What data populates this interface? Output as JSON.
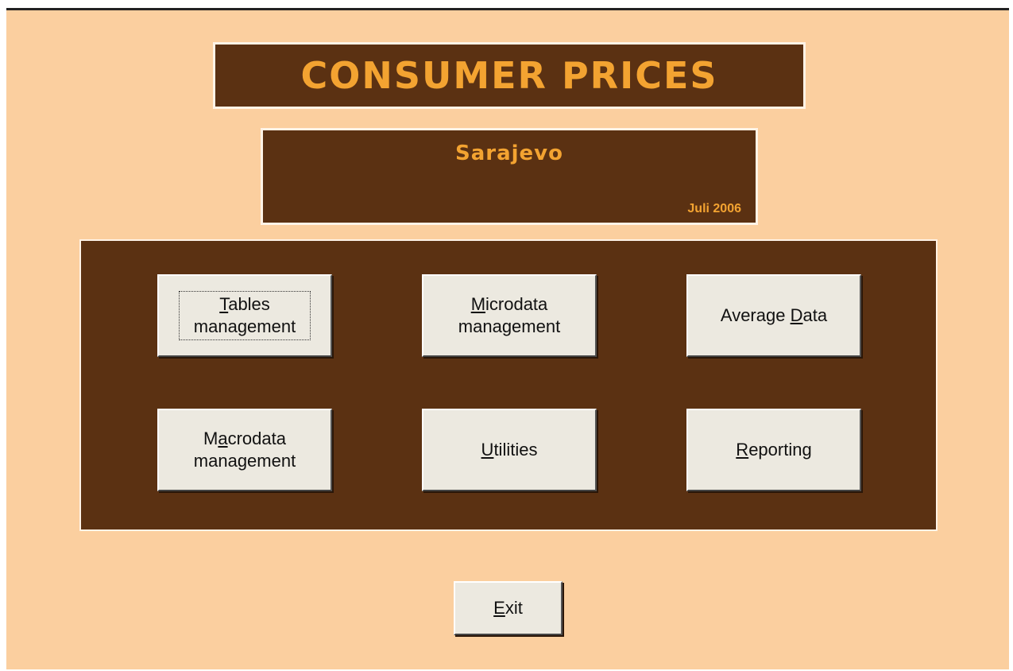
{
  "title": "CONSUMER PRICES",
  "subtitle": "Sarajevo",
  "date": "Juli 2006",
  "buttons": [
    {
      "segments": [
        {
          "text": "T",
          "underline": true
        },
        {
          "text": "ables management"
        }
      ]
    },
    {
      "segments": [
        {
          "text": "M",
          "underline": true
        },
        {
          "text": "icrodata management"
        }
      ]
    },
    {
      "segments": [
        {
          "text": "Average "
        },
        {
          "text": "D",
          "underline": true
        },
        {
          "text": "ata"
        }
      ]
    },
    {
      "segments": [
        {
          "text": "M"
        },
        {
          "text": "a",
          "underline": true
        },
        {
          "text": "crodata management"
        }
      ]
    },
    {
      "segments": [
        {
          "text": "U",
          "underline": true
        },
        {
          "text": "tilities"
        }
      ]
    },
    {
      "segments": [
        {
          "text": "R",
          "underline": true
        },
        {
          "text": "eporting"
        }
      ]
    }
  ],
  "exit": {
    "segments": [
      {
        "text": "E",
        "underline": true
      },
      {
        "text": "xit"
      }
    ]
  }
}
